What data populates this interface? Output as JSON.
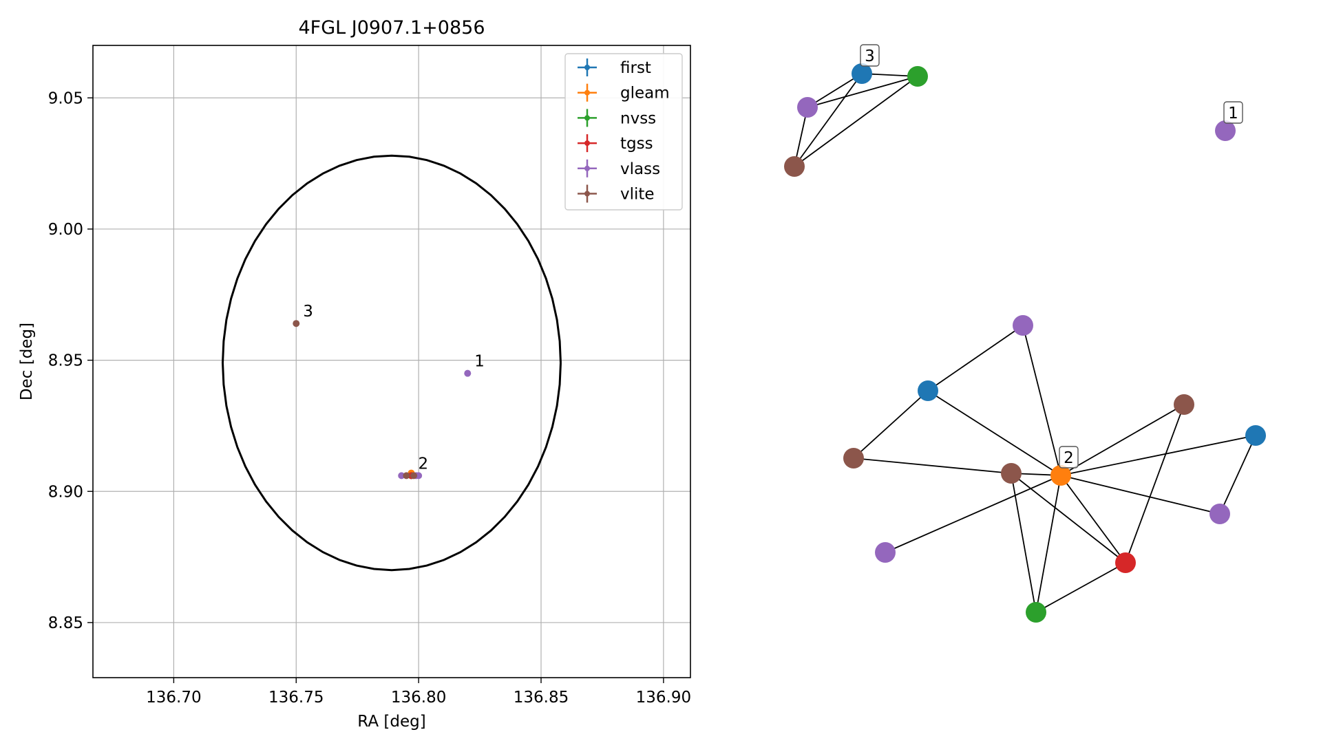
{
  "chart_data": [
    {
      "type": "scatter",
      "title": "4FGL J0907.1+0856",
      "xlabel": "RA [deg]",
      "ylabel": "Dec [deg]",
      "xlim": [
        136.667,
        136.911
      ],
      "ylim": [
        8.829,
        9.07
      ],
      "xticks": [
        136.7,
        136.75,
        136.8,
        136.85,
        136.9
      ],
      "xtick_labels": [
        "136.70",
        "136.75",
        "136.80",
        "136.85",
        "136.90"
      ],
      "yticks": [
        8.85,
        8.9,
        8.95,
        9.0,
        9.05
      ],
      "ytick_labels": [
        "8.85",
        "8.90",
        "8.95",
        "9.00",
        "9.05"
      ],
      "grid": true,
      "legend_position": "top-right",
      "error_ellipse": {
        "center": [
          136.789,
          8.949
        ],
        "semi_axis_ra": 0.069,
        "semi_axis_dec": 0.079,
        "angle_deg": 0
      },
      "series": [
        {
          "name": "first",
          "color": "#1f77b4",
          "points": [
            [
              136.797,
              8.906
            ]
          ]
        },
        {
          "name": "gleam",
          "color": "#ff7f0e",
          "points": [
            [
              136.797,
              8.907
            ]
          ]
        },
        {
          "name": "nvss",
          "color": "#2ca02c",
          "points": [
            [
              136.797,
              8.906
            ]
          ]
        },
        {
          "name": "tgss",
          "color": "#d62728",
          "points": [
            [
              136.797,
              8.906
            ]
          ]
        },
        {
          "name": "vlass",
          "color": "#9467bd",
          "points": [
            [
              136.82,
              8.945
            ],
            [
              136.793,
              8.906
            ],
            [
              136.799,
              8.906
            ],
            [
              136.8,
              8.906
            ]
          ]
        },
        {
          "name": "vlite",
          "color": "#8c564b",
          "points": [
            [
              136.75,
              8.964
            ],
            [
              136.795,
              8.906
            ],
            [
              136.798,
              8.906
            ]
          ]
        }
      ],
      "annotations": [
        {
          "text": "1",
          "at": [
            136.82,
            8.945
          ]
        },
        {
          "text": "2",
          "at": [
            136.797,
            8.906
          ]
        },
        {
          "text": "3",
          "at": [
            136.75,
            8.964
          ]
        }
      ]
    },
    {
      "type": "network",
      "nodes": [
        {
          "id": "a1",
          "color": "#1f77b4"
        },
        {
          "id": "a2",
          "color": "#2ca02c"
        },
        {
          "id": "a3",
          "color": "#9467bd"
        },
        {
          "id": "a4",
          "color": "#8c564b"
        },
        {
          "id": "b1",
          "color": "#9467bd"
        },
        {
          "id": "c1",
          "color": "#9467bd"
        },
        {
          "id": "c2",
          "color": "#1f77b4"
        },
        {
          "id": "c3",
          "color": "#8c564b"
        },
        {
          "id": "c4",
          "color": "#8c564b"
        },
        {
          "id": "c5",
          "color": "#ff7f0e"
        },
        {
          "id": "c6",
          "color": "#8c564b"
        },
        {
          "id": "c7",
          "color": "#1f77b4"
        },
        {
          "id": "c8",
          "color": "#9467bd"
        },
        {
          "id": "c9",
          "color": "#9467bd"
        },
        {
          "id": "c10",
          "color": "#d62728"
        },
        {
          "id": "c11",
          "color": "#2ca02c"
        }
      ],
      "edges": [
        [
          "a1",
          "a2"
        ],
        [
          "a1",
          "a3"
        ],
        [
          "a1",
          "a4"
        ],
        [
          "a2",
          "a3"
        ],
        [
          "a2",
          "a4"
        ],
        [
          "a3",
          "a4"
        ],
        [
          "c1",
          "c2"
        ],
        [
          "c1",
          "c5"
        ],
        [
          "c2",
          "c3"
        ],
        [
          "c2",
          "c5"
        ],
        [
          "c3",
          "c4"
        ],
        [
          "c4",
          "c5"
        ],
        [
          "c4",
          "c11"
        ],
        [
          "c4",
          "c10"
        ],
        [
          "c5",
          "c6"
        ],
        [
          "c5",
          "c7"
        ],
        [
          "c5",
          "c8"
        ],
        [
          "c5",
          "c9"
        ],
        [
          "c5",
          "c10"
        ],
        [
          "c5",
          "c11"
        ],
        [
          "c6",
          "c10"
        ],
        [
          "c7",
          "c8"
        ],
        [
          "c10",
          "c11"
        ]
      ],
      "labels": [
        {
          "text": "3",
          "node": "a1"
        },
        {
          "text": "1",
          "node": "b1"
        },
        {
          "text": "2",
          "node": "c5"
        }
      ]
    }
  ]
}
